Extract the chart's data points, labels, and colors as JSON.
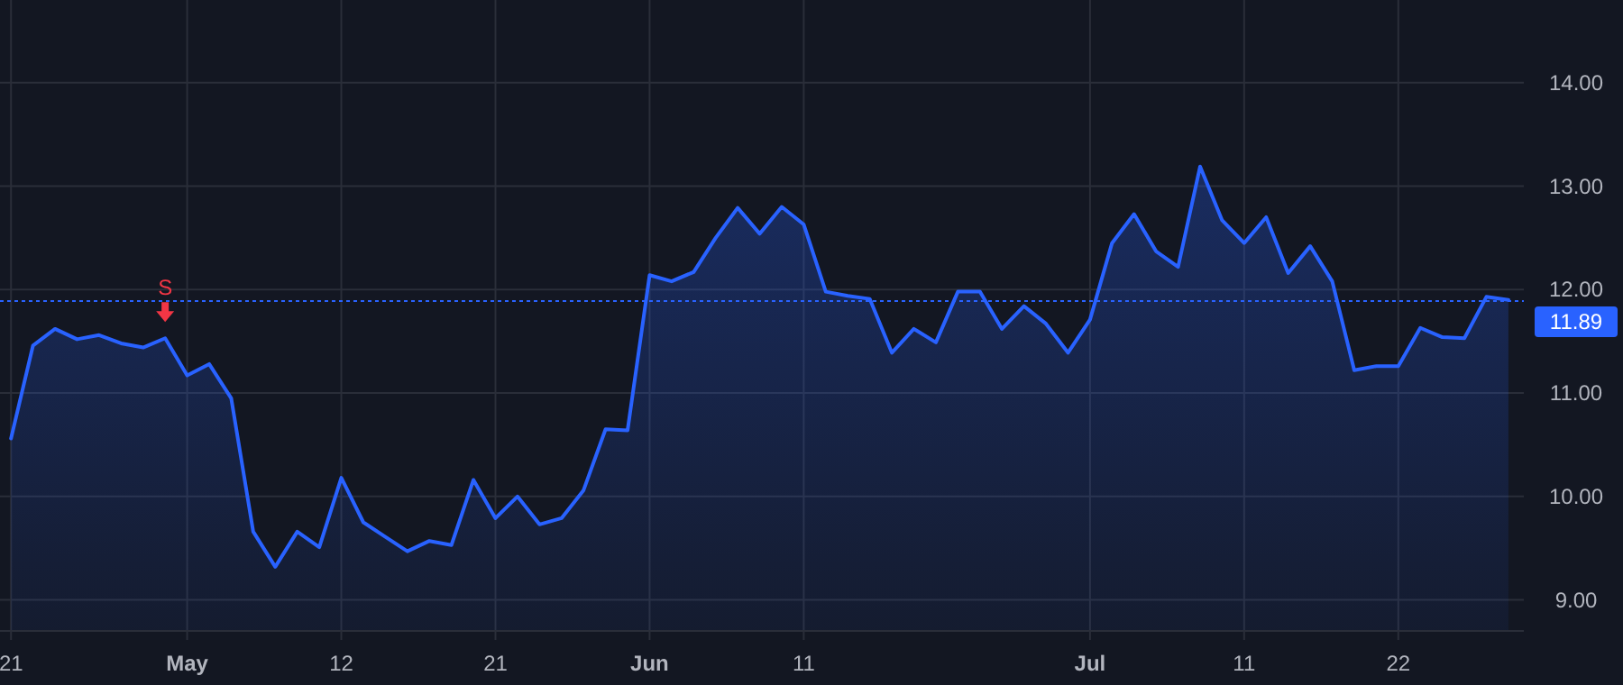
{
  "chart_data": {
    "type": "area",
    "categories": [
      "21",
      null,
      null,
      null,
      null,
      null,
      null,
      null,
      "May",
      null,
      null,
      null,
      null,
      null,
      null,
      "12",
      null,
      null,
      null,
      null,
      null,
      null,
      "21",
      null,
      null,
      null,
      null,
      null,
      null,
      "Jun",
      null,
      null,
      null,
      null,
      null,
      null,
      "11",
      null,
      null,
      null,
      null,
      null,
      null,
      null,
      null,
      null,
      null,
      null,
      null,
      "Jul",
      null,
      null,
      null,
      null,
      null,
      null,
      "11",
      null,
      null,
      null,
      null,
      null,
      null,
      "22",
      null,
      null,
      null,
      null,
      null
    ],
    "series": [
      {
        "color": "#2962ff",
        "values": [
          10.56,
          11.46,
          11.62,
          11.52,
          11.56,
          11.48,
          11.44,
          11.53,
          11.17,
          11.28,
          10.95,
          9.66,
          9.32,
          9.66,
          9.51,
          10.18,
          9.75,
          9.61,
          9.47,
          9.57,
          9.53,
          10.16,
          9.79,
          10.0,
          9.73,
          9.79,
          10.06,
          10.65,
          10.64,
          12.14,
          12.08,
          12.17,
          12.5,
          12.79,
          12.54,
          12.8,
          12.63,
          11.98,
          11.94,
          11.91,
          11.39,
          11.62,
          11.49,
          11.98,
          11.98,
          11.62,
          11.84,
          11.67,
          11.39,
          11.71,
          12.45,
          12.73,
          12.37,
          12.22,
          13.19,
          12.67,
          12.45,
          12.7,
          12.16,
          12.42,
          12.08,
          11.22,
          11.26,
          11.26,
          11.63,
          11.54,
          11.53,
          11.93,
          11.9
        ]
      }
    ],
    "ylim": [
      8.7,
      14.8
    ],
    "yticks": [
      {
        "value": 9,
        "label": "9.00"
      },
      {
        "value": 10,
        "label": "10.00"
      },
      {
        "value": 11,
        "label": "11.00"
      },
      {
        "value": 12,
        "label": "12.00"
      },
      {
        "value": 13,
        "label": "13.00"
      },
      {
        "value": 14,
        "label": "14.00"
      }
    ],
    "grid": true,
    "ref_lines": [
      {
        "axis": "y",
        "value": 11.89,
        "label": "11.89",
        "color": "#2962ff",
        "line_style": "dotted"
      }
    ],
    "annotations": [
      {
        "text": "S",
        "y": 11.53
      }
    ]
  }
}
